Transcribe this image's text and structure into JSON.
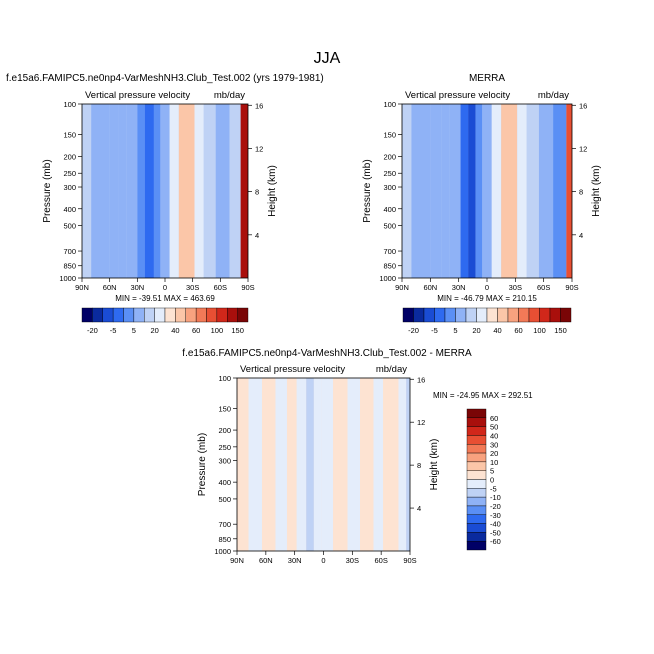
{
  "figure": {
    "title": "JJA"
  },
  "chart_data": [
    {
      "type": "heatmap",
      "title": "f.e15a6.FAMIPC5.ne0np4-VarMeshNH3.Club_Test.002 (yrs 1979-1981)",
      "subtitle_left": "Vertical pressure velocity",
      "subtitle_right": "mb/day",
      "xlabel": "",
      "ylabel": "Pressure (mb)",
      "ylabel_right": "Height (km)",
      "x_tick_labels": [
        "90N",
        "60N",
        "30N",
        "0",
        "30S",
        "60S",
        "90S"
      ],
      "x_ticks": [
        90,
        60,
        30,
        0,
        -30,
        -60,
        -90
      ],
      "y_tick_labels": [
        "100",
        "150",
        "200",
        "250",
        "300",
        "400",
        "500",
        "700",
        "850",
        "1000"
      ],
      "y_ticks": [
        100,
        150,
        200,
        250,
        300,
        400,
        500,
        700,
        850,
        1000
      ],
      "y_scale": "log",
      "ylim": [
        1000,
        100
      ],
      "right_tick_labels": [
        "4",
        "8",
        "12",
        "16"
      ],
      "right_ticks_km": [
        4,
        8,
        12,
        16
      ],
      "min_max_label": "MIN = -39.51   MAX = 463.69",
      "latitude_bands": [
        {
          "lat": [
            90,
            80
          ],
          "value": -8
        },
        {
          "lat": [
            80,
            60
          ],
          "value": -12
        },
        {
          "lat": [
            60,
            50
          ],
          "value": -18
        },
        {
          "lat": [
            50,
            42
          ],
          "value": -10
        },
        {
          "lat": [
            42,
            30
          ],
          "value": -18
        },
        {
          "lat": [
            30,
            22
          ],
          "value": -28
        },
        {
          "lat": [
            22,
            12
          ],
          "value": -35
        },
        {
          "lat": [
            12,
            5
          ],
          "value": -22
        },
        {
          "lat": [
            5,
            -5
          ],
          "value": -12
        },
        {
          "lat": [
            -5,
            -15
          ],
          "value": 0
        },
        {
          "lat": [
            -15,
            -32
          ],
          "value": 8
        },
        {
          "lat": [
            -32,
            -42
          ],
          "value": -2
        },
        {
          "lat": [
            -42,
            -55
          ],
          "value": -8
        },
        {
          "lat": [
            -55,
            -70
          ],
          "value": -15
        },
        {
          "lat": [
            -70,
            -82
          ],
          "value": -5
        },
        {
          "lat": [
            -82,
            -90
          ],
          "value": 60
        }
      ]
    },
    {
      "type": "heatmap",
      "title": "MERRA",
      "subtitle_left": "Vertical pressure velocity",
      "subtitle_right": "mb/day",
      "xlabel": "",
      "ylabel": "Pressure (mb)",
      "ylabel_right": "Height (km)",
      "x_tick_labels": [
        "90N",
        "60N",
        "30N",
        "0",
        "30S",
        "60S",
        "90S"
      ],
      "x_ticks": [
        90,
        60,
        30,
        0,
        -30,
        -60,
        -90
      ],
      "y_tick_labels": [
        "100",
        "150",
        "200",
        "250",
        "300",
        "400",
        "500",
        "700",
        "850",
        "1000"
      ],
      "y_ticks": [
        100,
        150,
        200,
        250,
        300,
        400,
        500,
        700,
        850,
        1000
      ],
      "y_scale": "log",
      "ylim": [
        1000,
        100
      ],
      "right_tick_labels": [
        "4",
        "8",
        "12",
        "16"
      ],
      "right_ticks_km": [
        4,
        8,
        12,
        16
      ],
      "min_max_label": "MIN = -46.79   MAX = 210.15",
      "latitude_bands": [
        {
          "lat": [
            90,
            80
          ],
          "value": -5
        },
        {
          "lat": [
            80,
            60
          ],
          "value": -12
        },
        {
          "lat": [
            60,
            48
          ],
          "value": -18
        },
        {
          "lat": [
            48,
            40
          ],
          "value": -10
        },
        {
          "lat": [
            40,
            28
          ],
          "value": -18
        },
        {
          "lat": [
            28,
            20
          ],
          "value": -30
        },
        {
          "lat": [
            20,
            12
          ],
          "value": -40
        },
        {
          "lat": [
            12,
            5
          ],
          "value": -22
        },
        {
          "lat": [
            5,
            -5
          ],
          "value": -12
        },
        {
          "lat": [
            -5,
            -15
          ],
          "value": 0
        },
        {
          "lat": [
            -15,
            -32
          ],
          "value": 8
        },
        {
          "lat": [
            -32,
            -42
          ],
          "value": -2
        },
        {
          "lat": [
            -42,
            -55
          ],
          "value": -8
        },
        {
          "lat": [
            -55,
            -70
          ],
          "value": -15
        },
        {
          "lat": [
            -70,
            -84
          ],
          "value": -25
        },
        {
          "lat": [
            -84,
            -90
          ],
          "value": 40
        }
      ]
    },
    {
      "type": "heatmap",
      "title": "f.e15a6.FAMIPC5.ne0np4-VarMeshNH3.Club_Test.002 - MERRA",
      "subtitle_left": "Vertical pressure velocity",
      "subtitle_right": "mb/day",
      "xlabel": "",
      "ylabel": "Pressure (mb)",
      "ylabel_right": "Height (km)",
      "x_tick_labels": [
        "90N",
        "60N",
        "30N",
        "0",
        "30S",
        "60S",
        "90S"
      ],
      "x_ticks": [
        90,
        60,
        30,
        0,
        -30,
        -60,
        -90
      ],
      "y_tick_labels": [
        "100",
        "150",
        "200",
        "250",
        "300",
        "400",
        "500",
        "700",
        "850",
        "1000"
      ],
      "y_ticks": [
        100,
        150,
        200,
        250,
        300,
        400,
        500,
        700,
        850,
        1000
      ],
      "y_scale": "log",
      "ylim": [
        1000,
        100
      ],
      "right_tick_labels": [
        "4",
        "8",
        "12",
        "16"
      ],
      "right_ticks_km": [
        4,
        8,
        12,
        16
      ],
      "min_max_label": "MIN = -24.95   MAX = 292.51",
      "latitude_bands": [
        {
          "lat": [
            90,
            78
          ],
          "value": 2
        },
        {
          "lat": [
            78,
            64
          ],
          "value": -2
        },
        {
          "lat": [
            64,
            50
          ],
          "value": 2
        },
        {
          "lat": [
            50,
            38
          ],
          "value": -2
        },
        {
          "lat": [
            38,
            28
          ],
          "value": 2
        },
        {
          "lat": [
            28,
            18
          ],
          "value": -4
        },
        {
          "lat": [
            18,
            10
          ],
          "value": -8
        },
        {
          "lat": [
            10,
            2
          ],
          "value": -3
        },
        {
          "lat": [
            2,
            -10
          ],
          "value": -2
        },
        {
          "lat": [
            -10,
            -25
          ],
          "value": 2
        },
        {
          "lat": [
            -25,
            -38
          ],
          "value": -2
        },
        {
          "lat": [
            -38,
            -52
          ],
          "value": 2
        },
        {
          "lat": [
            -52,
            -62
          ],
          "value": -2
        },
        {
          "lat": [
            -62,
            -78
          ],
          "value": 2
        },
        {
          "lat": [
            -78,
            -86
          ],
          "value": -3
        },
        {
          "lat": [
            -86,
            -90
          ],
          "value": -8
        }
      ]
    }
  ],
  "colorbars": [
    {
      "orientation": "horizontal",
      "labels": [
        "-20",
        "-5",
        "5",
        "20",
        "40",
        "60",
        "100",
        "150"
      ],
      "colors": [
        "#000066",
        "#0a2a9e",
        "#1a4cd4",
        "#2e6af0",
        "#5a8ff5",
        "#8fb2f6",
        "#bfd2f5",
        "#e4edfb",
        "#fde3d2",
        "#fbc6a8",
        "#f8a27f",
        "#f27a57",
        "#e84f33",
        "#d1271a",
        "#a90f0c",
        "#7a0506"
      ]
    },
    {
      "orientation": "horizontal",
      "labels": [
        "-20",
        "-5",
        "5",
        "20",
        "40",
        "60",
        "100",
        "150"
      ],
      "colors": [
        "#000066",
        "#0a2a9e",
        "#1a4cd4",
        "#2e6af0",
        "#5a8ff5",
        "#8fb2f6",
        "#bfd2f5",
        "#e4edfb",
        "#fde3d2",
        "#fbc6a8",
        "#f8a27f",
        "#f27a57",
        "#e84f33",
        "#d1271a",
        "#a90f0c",
        "#7a0506"
      ]
    },
    {
      "orientation": "vertical",
      "labels": [
        "60",
        "50",
        "40",
        "30",
        "20",
        "10",
        "5",
        "0",
        "-5",
        "-10",
        "-20",
        "-30",
        "-40",
        "-50",
        "-60"
      ],
      "colors": [
        "#7a0506",
        "#a90f0c",
        "#d1271a",
        "#e84f33",
        "#f27a57",
        "#f8a27f",
        "#fbc6a8",
        "#fde3d2",
        "#e4edfb",
        "#bfd2f5",
        "#8fb2f6",
        "#5a8ff5",
        "#2e6af0",
        "#1a4cd4",
        "#0a2a9e",
        "#000066"
      ]
    }
  ]
}
